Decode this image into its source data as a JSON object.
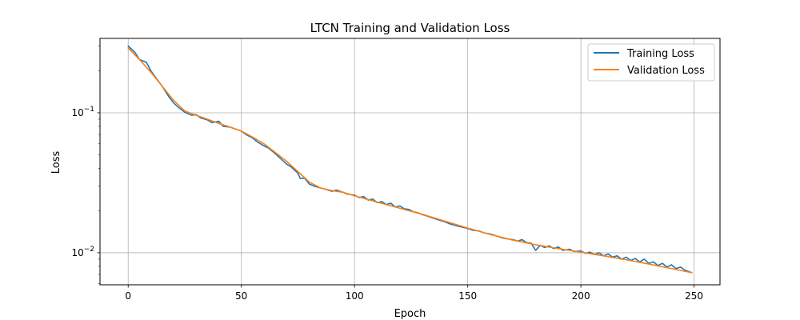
{
  "chart_data": {
    "type": "line",
    "title": "LTCN Training and Validation Loss",
    "xlabel": "Epoch",
    "ylabel": "Loss",
    "xlim": [
      -12.45,
      261.45
    ],
    "ylim": [
      0.0059,
      0.34
    ],
    "yscale": "log",
    "grid": true,
    "legend": "top-right",
    "x_ticks": [
      0,
      50,
      100,
      150,
      200,
      250
    ],
    "y_ticks": [
      {
        "value": 0.1,
        "base": "10",
        "exp": "−1"
      },
      {
        "value": 0.01,
        "base": "10",
        "exp": "−2"
      }
    ],
    "series": [
      {
        "name": "Training Loss",
        "color": "#1f77b4",
        "x": [
          0,
          3,
          5,
          8,
          10,
          12,
          15,
          18,
          20,
          22,
          25,
          28,
          30,
          32,
          35,
          37,
          40,
          42,
          45,
          47,
          50,
          52,
          55,
          57,
          60,
          62,
          65,
          68,
          70,
          72,
          75,
          76,
          78,
          80,
          82,
          85,
          87,
          90,
          92,
          95,
          97,
          100,
          102,
          104,
          106,
          108,
          110,
          112,
          114,
          116,
          118,
          120,
          122,
          124,
          126,
          128,
          130,
          132,
          135,
          137,
          140,
          142,
          145,
          147,
          150,
          152,
          155,
          157,
          160,
          162,
          165,
          167,
          170,
          172,
          174,
          176,
          178,
          180,
          182,
          184,
          186,
          188,
          190,
          192,
          195,
          197,
          200,
          202,
          204,
          206,
          208,
          210,
          212,
          214,
          216,
          218,
          220,
          222,
          224,
          226,
          228,
          230,
          232,
          234,
          236,
          238,
          240,
          242,
          244,
          246,
          249
        ],
        "y": [
          0.3,
          0.27,
          0.24,
          0.23,
          0.2,
          0.18,
          0.155,
          0.13,
          0.118,
          0.11,
          0.101,
          0.096,
          0.097,
          0.092,
          0.089,
          0.085,
          0.087,
          0.08,
          0.079,
          0.077,
          0.074,
          0.07,
          0.066,
          0.062,
          0.058,
          0.056,
          0.051,
          0.046,
          0.043,
          0.041,
          0.037,
          0.034,
          0.034,
          0.031,
          0.03,
          0.029,
          0.0285,
          0.0275,
          0.028,
          0.027,
          0.0262,
          0.0258,
          0.0248,
          0.0252,
          0.0238,
          0.0242,
          0.0228,
          0.0232,
          0.0221,
          0.0226,
          0.0212,
          0.0216,
          0.0206,
          0.0204,
          0.0196,
          0.0193,
          0.0187,
          0.0183,
          0.0176,
          0.0172,
          0.0166,
          0.0161,
          0.0156,
          0.0153,
          0.0149,
          0.0145,
          0.0143,
          0.0139,
          0.0136,
          0.0133,
          0.0128,
          0.0126,
          0.0124,
          0.0121,
          0.0124,
          0.0118,
          0.0117,
          0.0104,
          0.0113,
          0.0109,
          0.0112,
          0.0107,
          0.011,
          0.0104,
          0.0106,
          0.0102,
          0.0103,
          0.0099,
          0.0101,
          0.0097,
          0.01,
          0.0095,
          0.0098,
          0.0093,
          0.0095,
          0.009,
          0.0093,
          0.0088,
          0.0091,
          0.0086,
          0.009,
          0.0084,
          0.0086,
          0.0081,
          0.0084,
          0.0079,
          0.0082,
          0.0077,
          0.0079,
          0.0075,
          0.0072
        ]
      },
      {
        "name": "Validation Loss",
        "color": "#ff7f0e",
        "x": [
          0,
          5,
          10,
          15,
          20,
          25,
          30,
          35,
          40,
          45,
          50,
          55,
          60,
          65,
          70,
          75,
          80,
          85,
          90,
          95,
          100,
          110,
          120,
          130,
          140,
          150,
          160,
          170,
          180,
          190,
          200,
          210,
          220,
          230,
          240,
          249
        ],
        "y": [
          0.29,
          0.24,
          0.195,
          0.155,
          0.123,
          0.103,
          0.096,
          0.09,
          0.084,
          0.079,
          0.074,
          0.067,
          0.06,
          0.052,
          0.045,
          0.038,
          0.032,
          0.029,
          0.0278,
          0.027,
          0.0255,
          0.023,
          0.0208,
          0.0188,
          0.0168,
          0.015,
          0.0135,
          0.0123,
          0.0114,
          0.0107,
          0.0101,
          0.0095,
          0.0089,
          0.0083,
          0.0077,
          0.0072
        ]
      }
    ]
  }
}
